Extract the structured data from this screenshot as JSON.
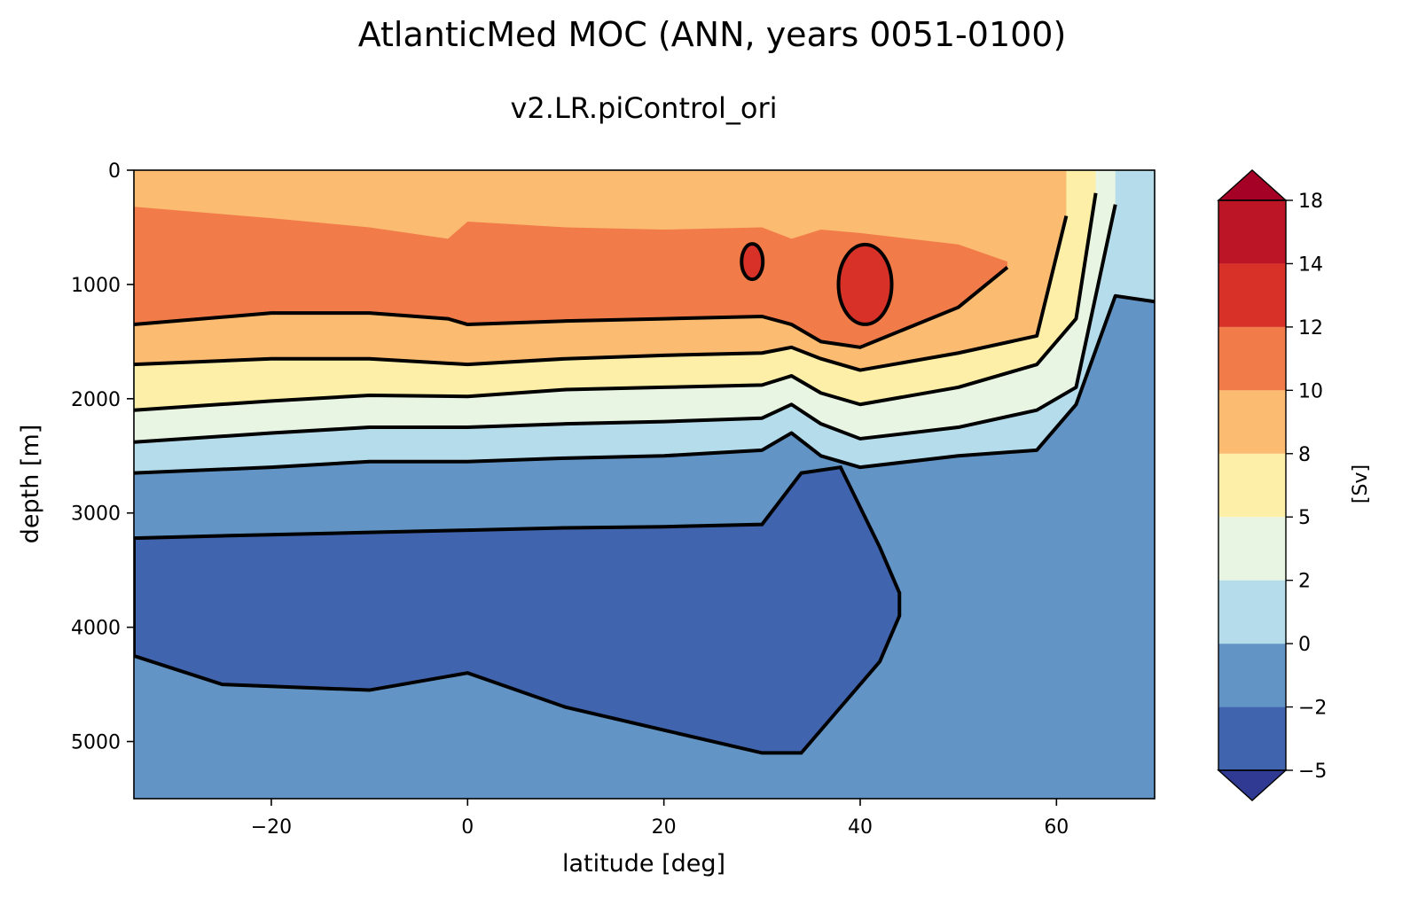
{
  "chart_data": {
    "type": "heatmap",
    "title": "AtlanticMed MOC (ANN, years 0051-0100)",
    "subtitle": "v2.LR.piControl_ori",
    "xlabel": "latitude [deg]",
    "ylabel": "depth [m]",
    "xlim": [
      -34,
      70
    ],
    "ylim": [
      5500,
      0
    ],
    "x_ticks": [
      -20,
      0,
      20,
      40,
      60
    ],
    "x_tick_labels": [
      "−20",
      "0",
      "20",
      "40",
      "60"
    ],
    "y_ticks": [
      0,
      1000,
      2000,
      3000,
      4000,
      5000
    ],
    "y_tick_labels": [
      "0",
      "1000",
      "2000",
      "3000",
      "4000",
      "5000"
    ],
    "colorbar": {
      "label": "[Sv]",
      "levels": [
        -5,
        -2,
        0,
        2,
        5,
        8,
        10,
        12,
        14,
        18
      ],
      "tick_labels": [
        "−5",
        "−2",
        "0",
        "2",
        "5",
        "8",
        "10",
        "12",
        "14",
        "18"
      ],
      "colors": [
        "#4064ad",
        "#6295c5",
        "#b4dceb",
        "#e8f5e3",
        "#fdefa7",
        "#fbbb71",
        "#f27c49",
        "#d83128",
        "#bc1626"
      ],
      "under_color": "#303a93",
      "over_color": "#a50026",
      "extend": "both"
    },
    "grid": false,
    "bands": [
      {
        "level": 0,
        "color": "#b4dceb",
        "x": [
          -34,
          -20,
          -10,
          0,
          10,
          20,
          30,
          33,
          36,
          40,
          50,
          58,
          62,
          66,
          70
        ],
        "top": [
          0,
          0,
          0,
          0,
          0,
          0,
          0,
          0,
          0,
          0,
          0,
          0,
          0,
          0,
          0
        ],
        "bottom": [
          2650,
          2600,
          2550,
          2550,
          2520,
          2500,
          2450,
          2300,
          2500,
          2600,
          2500,
          2450,
          2050,
          1100,
          1150
        ]
      },
      {
        "level": 2,
        "color": "#e8f5e3",
        "x": [
          -34,
          -20,
          -10,
          0,
          10,
          20,
          30,
          33,
          36,
          40,
          50,
          58,
          62,
          66
        ],
        "top": [
          0,
          0,
          0,
          0,
          0,
          0,
          0,
          0,
          0,
          0,
          0,
          0,
          0,
          0
        ],
        "bottom": [
          2380,
          2300,
          2250,
          2250,
          2220,
          2200,
          2170,
          2050,
          2220,
          2350,
          2250,
          2100,
          1900,
          300
        ]
      },
      {
        "level": 5,
        "color": "#fdefa7",
        "x": [
          -34,
          -20,
          -10,
          0,
          10,
          20,
          30,
          33,
          36,
          40,
          50,
          58,
          62,
          64
        ],
        "top": [
          0,
          0,
          0,
          0,
          0,
          0,
          0,
          0,
          0,
          0,
          0,
          0,
          0,
          0
        ],
        "bottom": [
          2100,
          2020,
          1970,
          1980,
          1920,
          1900,
          1880,
          1800,
          1950,
          2050,
          1900,
          1700,
          1300,
          200
        ]
      },
      {
        "level": 8,
        "color": "#fbbb71",
        "x": [
          -34,
          -20,
          -10,
          0,
          10,
          20,
          30,
          33,
          36,
          40,
          50,
          58,
          61
        ],
        "top": [
          0,
          0,
          0,
          0,
          0,
          0,
          0,
          0,
          0,
          0,
          0,
          0,
          0
        ],
        "bottom": [
          1700,
          1650,
          1650,
          1700,
          1650,
          1620,
          1600,
          1550,
          1650,
          1750,
          1600,
          1450,
          400
        ]
      },
      {
        "level": 10,
        "color": "#f27c49",
        "x": [
          -34,
          -20,
          -10,
          -2,
          0,
          10,
          20,
          30,
          33,
          36,
          40,
          50,
          55
        ],
        "top": [
          320,
          420,
          500,
          600,
          450,
          500,
          520,
          500,
          600,
          520,
          550,
          650,
          800
        ],
        "bottom": [
          1350,
          1250,
          1250,
          1300,
          1350,
          1320,
          1300,
          1280,
          1350,
          1500,
          1550,
          1200,
          850
        ]
      }
    ],
    "core_max": [
      {
        "lat": 40.5,
        "depth": 1000,
        "value": 14
      },
      {
        "lat": 29,
        "depth": 800,
        "value": 13
      }
    ],
    "negative_cell": {
      "value": -2,
      "lat_range": [
        -34,
        44
      ],
      "depth_range": [
        2600,
        5100
      ]
    }
  },
  "colors": {
    "background": "#ffffff",
    "contour": "#000000",
    "land_fill": "#6295c5"
  }
}
